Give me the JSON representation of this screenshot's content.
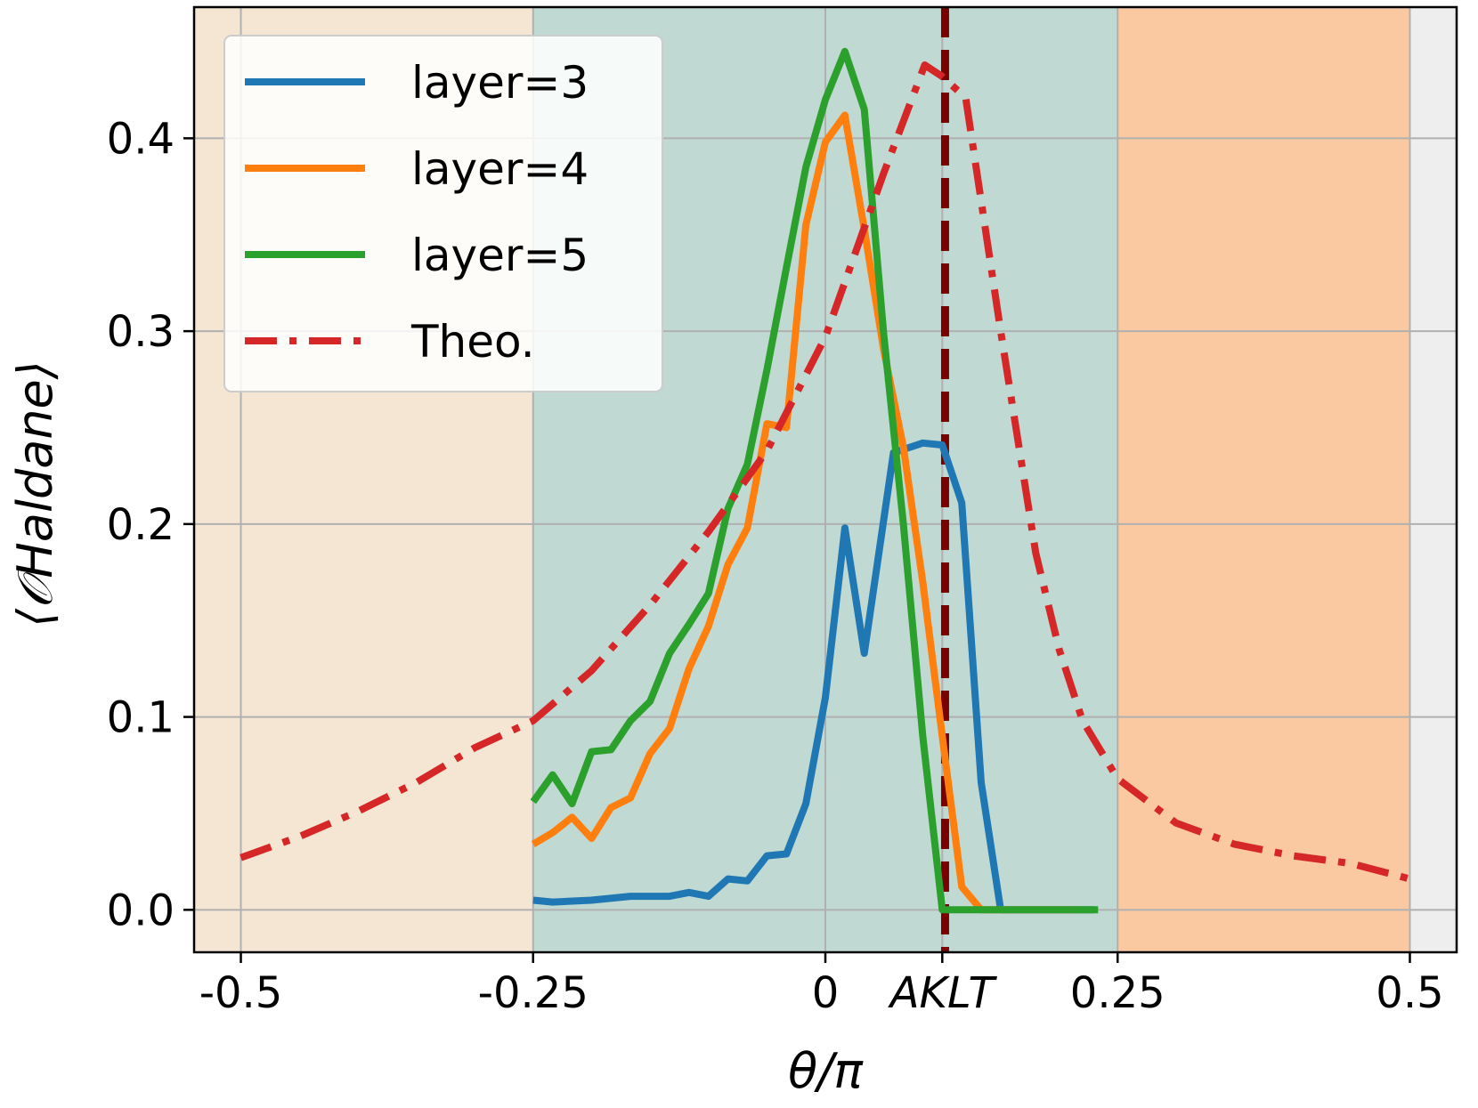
{
  "chart_data": {
    "type": "line",
    "xlabel": "θ/π",
    "ylabel": "⟨𝒪Haldane⟩",
    "xlim": [
      -0.54,
      0.54
    ],
    "ylim": [
      -0.022,
      0.468
    ],
    "grid": true,
    "legend_position": "top-left",
    "x_ticks": [
      {
        "value": -0.5,
        "label": "-0.5"
      },
      {
        "value": -0.25,
        "label": "-0.25"
      },
      {
        "value": 0,
        "label": "0"
      },
      {
        "value": 0.1,
        "label": "AKLT"
      },
      {
        "value": 0.25,
        "label": "0.25"
      },
      {
        "value": 0.5,
        "label": "0.5"
      }
    ],
    "y_ticks": [
      {
        "value": 0.0,
        "label": "0.0"
      },
      {
        "value": 0.1,
        "label": "0.1"
      },
      {
        "value": 0.2,
        "label": "0.2"
      },
      {
        "value": 0.3,
        "label": "0.3"
      },
      {
        "value": 0.4,
        "label": "0.4"
      }
    ],
    "regions": [
      {
        "x": [
          -0.54,
          -0.25
        ],
        "color": "#f5e6d3"
      },
      {
        "x": [
          -0.25,
          0.25
        ],
        "color": "#c0d9d2"
      },
      {
        "x": [
          0.25,
          0.5
        ],
        "color": "#fac9a1"
      },
      {
        "x": [
          0.5,
          0.54
        ],
        "color": "#eeeeee"
      }
    ],
    "vertical_line": {
      "x": 0.1024,
      "color": "#7a0000"
    },
    "series": [
      {
        "name": "layer=3",
        "color": "#1f77b4",
        "style": "solid",
        "x": [
          -0.25,
          -0.2333,
          -0.2,
          -0.1667,
          -0.1333,
          -0.1167,
          -0.1,
          -0.0833,
          -0.0667,
          -0.05,
          -0.0333,
          -0.0167,
          0,
          0.0167,
          0.0333,
          0.0583,
          0.0833,
          0.1,
          0.1167,
          0.1333,
          0.15,
          0.1667,
          0.1833,
          0.1967,
          0.23
        ],
        "y": [
          0.005,
          0.004,
          0.005,
          0.007,
          0.007,
          0.009,
          0.007,
          0.016,
          0.015,
          0.028,
          0.029,
          0.055,
          0.11,
          0.198,
          0.133,
          0.237,
          0.242,
          0.241,
          0.211,
          0.066,
          0.0,
          0.0,
          0.0,
          0.0,
          0.0
        ]
      },
      {
        "name": "layer=4",
        "color": "#ff7f0e",
        "style": "solid",
        "x": [
          -0.25,
          -0.2333,
          -0.2167,
          -0.2,
          -0.1833,
          -0.1667,
          -0.15,
          -0.1333,
          -0.1167,
          -0.1,
          -0.0833,
          -0.0667,
          -0.05,
          -0.0333,
          -0.0167,
          0,
          0.0167,
          0.0333,
          0.05,
          0.0667,
          0.0833,
          0.1,
          0.1167,
          0.1333,
          0.15,
          0.1667,
          0.1833,
          0.2,
          0.2167
        ],
        "y": [
          0.034,
          0.04,
          0.048,
          0.037,
          0.053,
          0.058,
          0.081,
          0.094,
          0.125,
          0.147,
          0.179,
          0.198,
          0.252,
          0.25,
          0.355,
          0.398,
          0.412,
          0.353,
          0.29,
          0.24,
          0.17,
          0.09,
          0.012,
          0.0,
          0.0,
          0.0,
          0.0,
          0.0,
          0.0
        ]
      },
      {
        "name": "layer=5",
        "color": "#2ca02c",
        "style": "solid",
        "x": [
          -0.25,
          -0.2333,
          -0.2167,
          -0.2,
          -0.1833,
          -0.1667,
          -0.15,
          -0.1333,
          -0.1167,
          -0.1,
          -0.0833,
          -0.0667,
          -0.05,
          -0.0333,
          -0.0167,
          0,
          0.0167,
          0.0333,
          0.05,
          0.0667,
          0.0833,
          0.1,
          0.1167,
          0.1333,
          0.15,
          0.1667,
          0.1833,
          0.2,
          0.2333
        ],
        "y": [
          0.056,
          0.07,
          0.055,
          0.082,
          0.083,
          0.098,
          0.108,
          0.133,
          0.148,
          0.164,
          0.208,
          0.231,
          0.28,
          0.333,
          0.385,
          0.42,
          0.445,
          0.415,
          0.298,
          0.2,
          0.09,
          0.0,
          0.0,
          0.0,
          0.0,
          0.0,
          0.0,
          0.0,
          0.0
        ]
      },
      {
        "name": "Theo.",
        "color": "#d62728",
        "style": "dashdot",
        "x": [
          -0.5,
          -0.45,
          -0.4,
          -0.35,
          -0.3,
          -0.25,
          -0.2,
          -0.15,
          -0.1,
          -0.05,
          0,
          0.05,
          0.085,
          0.1,
          0.12,
          0.15,
          0.18,
          0.2,
          0.22,
          0.25,
          0.3,
          0.35,
          0.4,
          0.45,
          0.5
        ],
        "y": [
          0.027,
          0.038,
          0.051,
          0.066,
          0.084,
          0.098,
          0.124,
          0.158,
          0.196,
          0.238,
          0.297,
          0.382,
          0.438,
          0.432,
          0.421,
          0.3,
          0.185,
          0.135,
          0.098,
          0.068,
          0.045,
          0.034,
          0.028,
          0.024,
          0.016
        ]
      }
    ]
  }
}
